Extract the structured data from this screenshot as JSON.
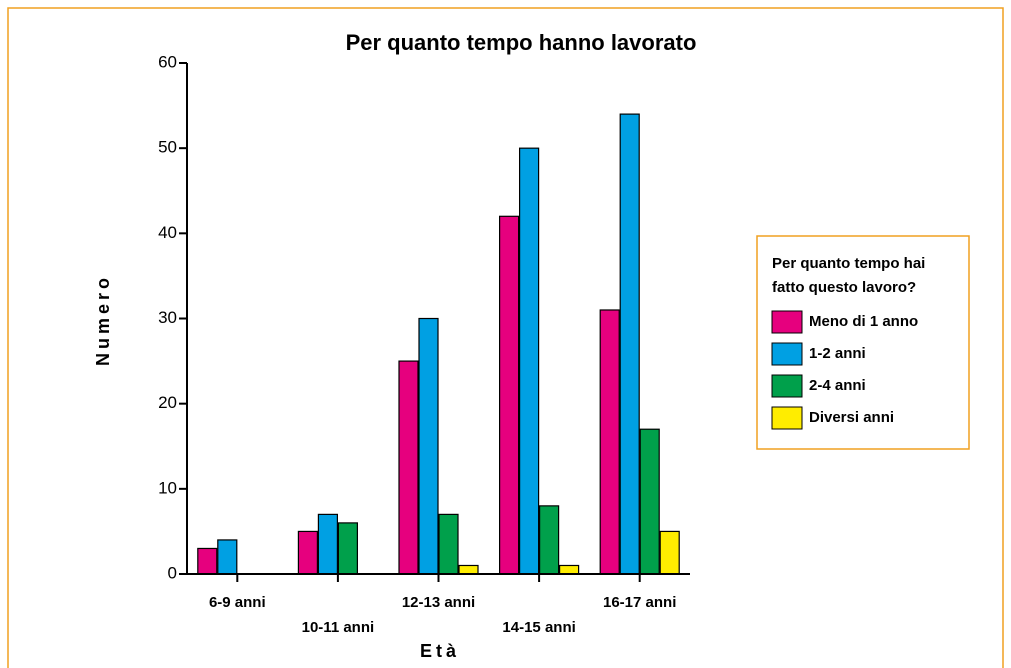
{
  "chart_data": {
    "type": "bar",
    "title": "Per quanto tempo hanno lavorato",
    "x_label": "Età",
    "y_label": "Numero",
    "legend_title": [
      "Per quanto tempo hai",
      "fatto questo lavoro?"
    ],
    "categories": [
      "6-9 anni",
      "10-11 anni",
      "12-13 anni",
      "14-15 anni",
      "16-17 anni"
    ],
    "series": [
      {
        "name": "Meno di 1 anno",
        "color": "#e6007e",
        "values": [
          3,
          5,
          25,
          42,
          31
        ]
      },
      {
        "name": "1-2 anni",
        "color": "#00a0e3",
        "values": [
          4,
          7,
          30,
          50,
          54
        ]
      },
      {
        "name": "2-4 anni",
        "color": "#00a04b",
        "values": [
          0,
          6,
          7,
          8,
          17
        ]
      },
      {
        "name": "Diversi anni",
        "color": "#ffed00",
        "values": [
          0,
          0,
          1,
          1,
          5
        ]
      }
    ],
    "ylim": [
      0,
      60
    ],
    "yticks": [
      0,
      10,
      20,
      30,
      40,
      50,
      60
    ],
    "legend": "right"
  }
}
